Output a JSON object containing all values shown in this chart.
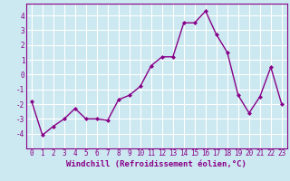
{
  "x": [
    0,
    1,
    2,
    3,
    4,
    5,
    6,
    7,
    8,
    9,
    10,
    11,
    12,
    13,
    14,
    15,
    16,
    17,
    18,
    19,
    20,
    21,
    22,
    23
  ],
  "y": [
    -1.8,
    -4.1,
    -3.5,
    -3.0,
    -2.3,
    -3.0,
    -3.0,
    -3.1,
    -1.7,
    -1.4,
    -0.8,
    0.6,
    1.2,
    1.2,
    3.5,
    3.5,
    4.3,
    2.7,
    1.5,
    -1.4,
    -2.6,
    -1.5,
    0.5,
    -2.0
  ],
  "line_color": "#880088",
  "marker": "D",
  "marker_size": 2.0,
  "line_width": 1.0,
  "xlabel": "Windchill (Refroidissement éolien,°C)",
  "xlabel_fontsize": 6.5,
  "ylim": [
    -5.0,
    4.8
  ],
  "xlim": [
    -0.5,
    23.5
  ],
  "yticks": [
    -4,
    -3,
    -2,
    -1,
    0,
    1,
    2,
    3,
    4
  ],
  "xticks": [
    0,
    1,
    2,
    3,
    4,
    5,
    6,
    7,
    8,
    9,
    10,
    11,
    12,
    13,
    14,
    15,
    16,
    17,
    18,
    19,
    20,
    21,
    22,
    23
  ],
  "bg_color": "#cce8f0",
  "grid_color": "#dddddd",
  "tick_color": "#880088",
  "tick_fontsize": 5.5,
  "label_color": "#880088"
}
